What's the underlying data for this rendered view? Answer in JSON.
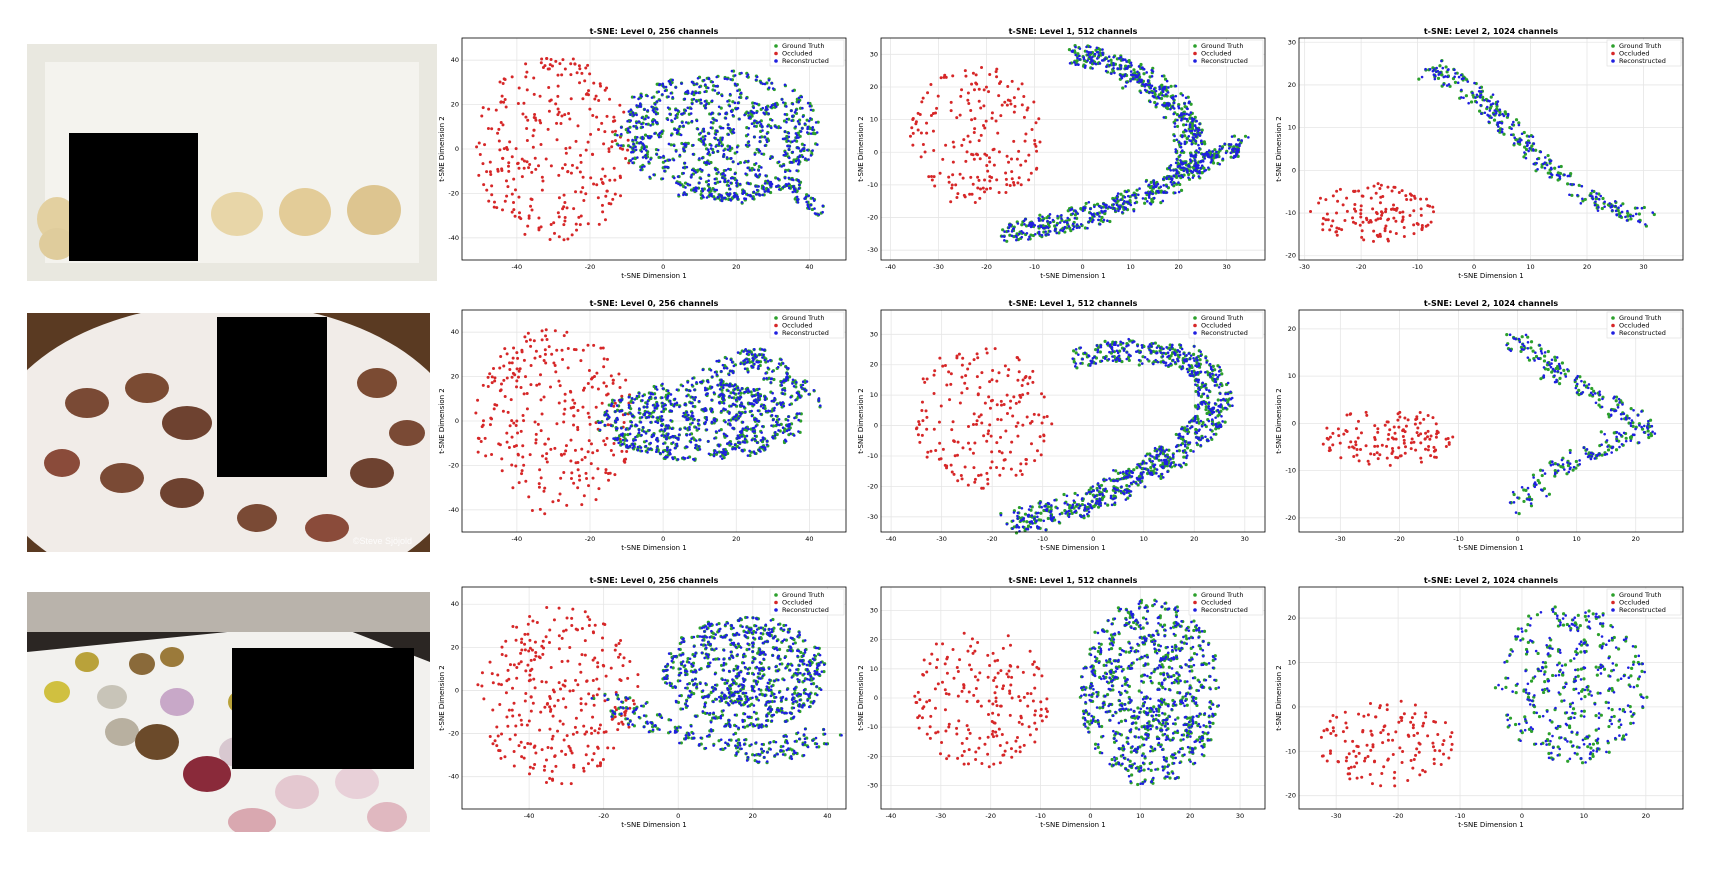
{
  "rows": [
    {
      "image": {
        "subject": "seashells on white paper",
        "occluded": true,
        "watermark": ""
      },
      "charts": [
        {
          "title": "t-SNE: Level 0, 256 channels",
          "clusters": "L0A"
        },
        {
          "title": "t-SNE: Level 1, 512 channels",
          "clusters": "L1A"
        },
        {
          "title": "t-SNE: Level 2, 1024 channels",
          "clusters": "L2A"
        }
      ]
    },
    {
      "image": {
        "subject": "chocolate-dipped strawberries on a white plate",
        "occluded": true,
        "watermark": "©Steve Sjöjold"
      },
      "charts": [
        {
          "title": "t-SNE: Level 0, 256 channels",
          "clusters": "L0B"
        },
        {
          "title": "t-SNE: Level 1, 512 channels",
          "clusters": "L1B"
        },
        {
          "title": "t-SNE: Level 2, 1024 channels",
          "clusters": "L2B"
        }
      ]
    },
    {
      "image": {
        "subject": "chocolate bonbons on a white tray",
        "occluded": true,
        "watermark": ""
      },
      "charts": [
        {
          "title": "t-SNE: Level 0, 256 channels",
          "clusters": "L0C"
        },
        {
          "title": "t-SNE: Level 1, 512 channels",
          "clusters": "L1C"
        },
        {
          "title": "t-SNE: Level 2, 1024 channels",
          "clusters": "L2C"
        }
      ]
    }
  ],
  "chart_data": [
    {
      "type": "scatter",
      "title": "t-SNE: Level 0, 256 channels",
      "xlabel": "t-SNE Dimension 1",
      "ylabel": "t-SNE Dimension 2",
      "xlim": [
        -55,
        50
      ],
      "ylim": [
        -50,
        50
      ],
      "xticks": [
        -40,
        -20,
        0,
        20,
        40
      ],
      "yticks": [
        -40,
        -20,
        0,
        20,
        40
      ],
      "grid": true,
      "legend": "top-right",
      "series": [
        {
          "name": "Ground Truth",
          "color": "#2ca02c"
        },
        {
          "name": "Occluded",
          "color": "#d62728"
        },
        {
          "name": "Reconstructed",
          "color": "#1f1fe0"
        }
      ]
    },
    {
      "type": "scatter",
      "title": "t-SNE: Level 1, 512 channels",
      "xlabel": "t-SNE Dimension 1",
      "ylabel": "t-SNE Dimension 2",
      "xlim": [
        -42,
        38
      ],
      "ylim": [
        -33,
        35
      ],
      "xticks": [
        -40,
        -30,
        -20,
        -10,
        0,
        10,
        20,
        30
      ],
      "yticks": [
        -30,
        -20,
        -10,
        0,
        10,
        20,
        30
      ],
      "grid": true,
      "legend": "top-right",
      "series": [
        {
          "name": "Ground Truth",
          "color": "#2ca02c"
        },
        {
          "name": "Occluded",
          "color": "#d62728"
        },
        {
          "name": "Reconstructed",
          "color": "#1f1fe0"
        }
      ]
    },
    {
      "type": "scatter",
      "title": "t-SNE: Level 2, 1024 channels",
      "xlabel": "t-SNE Dimension 1",
      "ylabel": "t-SNE Dimension 2",
      "xlim": [
        -31,
        37
      ],
      "ylim": [
        -21,
        31
      ],
      "xticks": [
        -30,
        -20,
        -10,
        0,
        10,
        20,
        30
      ],
      "yticks": [
        -20,
        -10,
        0,
        10,
        20,
        30
      ],
      "grid": true,
      "legend": "top-right",
      "series": [
        {
          "name": "Ground Truth",
          "color": "#2ca02c"
        },
        {
          "name": "Occluded",
          "color": "#d62728"
        },
        {
          "name": "Reconstructed",
          "color": "#1f1fe0"
        }
      ]
    },
    {
      "type": "scatter",
      "title": "t-SNE: Level 0, 256 channels",
      "xlabel": "t-SNE Dimension 1",
      "ylabel": "t-SNE Dimension 2",
      "xlim": [
        -55,
        50
      ],
      "ylim": [
        -50,
        50
      ],
      "xticks": [
        -40,
        -20,
        0,
        20,
        40
      ],
      "yticks": [
        -40,
        -20,
        0,
        20,
        40
      ],
      "grid": true,
      "legend": "top-right",
      "series": [
        {
          "name": "Ground Truth",
          "color": "#2ca02c"
        },
        {
          "name": "Occluded",
          "color": "#d62728"
        },
        {
          "name": "Reconstructed",
          "color": "#1f1fe0"
        }
      ]
    },
    {
      "type": "scatter",
      "title": "t-SNE: Level 1, 512 channels",
      "xlabel": "t-SNE Dimension 1",
      "ylabel": "t-SNE Dimension 2",
      "xlim": [
        -42,
        34
      ],
      "ylim": [
        -35,
        38
      ],
      "xticks": [
        -40,
        -30,
        -20,
        -10,
        0,
        10,
        20,
        30
      ],
      "yticks": [
        -30,
        -20,
        -10,
        0,
        10,
        20,
        30
      ],
      "grid": true,
      "legend": "top-right",
      "series": [
        {
          "name": "Ground Truth",
          "color": "#2ca02c"
        },
        {
          "name": "Occluded",
          "color": "#d62728"
        },
        {
          "name": "Reconstructed",
          "color": "#1f1fe0"
        }
      ]
    },
    {
      "type": "scatter",
      "title": "t-SNE: Level 2, 1024 channels",
      "xlabel": "t-SNE Dimension 1",
      "ylabel": "t-SNE Dimension 2",
      "xlim": [
        -37,
        28
      ],
      "ylim": [
        -23,
        24
      ],
      "xticks": [
        -30,
        -20,
        -10,
        0,
        10,
        20
      ],
      "yticks": [
        -20,
        -10,
        0,
        10,
        20
      ],
      "grid": true,
      "legend": "top-right",
      "series": [
        {
          "name": "Ground Truth",
          "color": "#2ca02c"
        },
        {
          "name": "Occluded",
          "color": "#d62728"
        },
        {
          "name": "Reconstructed",
          "color": "#1f1fe0"
        }
      ]
    },
    {
      "type": "scatter",
      "title": "t-SNE: Level 0, 256 channels",
      "xlabel": "t-SNE Dimension 1",
      "ylabel": "t-SNE Dimension 2",
      "xlim": [
        -58,
        45
      ],
      "ylim": [
        -55,
        48
      ],
      "xticks": [
        -40,
        -20,
        0,
        20,
        40
      ],
      "yticks": [
        -40,
        -20,
        0,
        20,
        40
      ],
      "grid": true,
      "legend": "top-right",
      "series": [
        {
          "name": "Ground Truth",
          "color": "#2ca02c"
        },
        {
          "name": "Occluded",
          "color": "#d62728"
        },
        {
          "name": "Reconstructed",
          "color": "#1f1fe0"
        }
      ]
    },
    {
      "type": "scatter",
      "title": "t-SNE: Level 1, 512 channels",
      "xlabel": "t-SNE Dimension 1",
      "ylabel": "t-SNE Dimension 2",
      "xlim": [
        -42,
        35
      ],
      "ylim": [
        -38,
        38
      ],
      "xticks": [
        -40,
        -30,
        -20,
        -10,
        0,
        10,
        20,
        30
      ],
      "yticks": [
        -30,
        -20,
        -10,
        0,
        10,
        20,
        30
      ],
      "grid": true,
      "legend": "top-right",
      "series": [
        {
          "name": "Ground Truth",
          "color": "#2ca02c"
        },
        {
          "name": "Occluded",
          "color": "#d62728"
        },
        {
          "name": "Reconstructed",
          "color": "#1f1fe0"
        }
      ]
    },
    {
      "type": "scatter",
      "title": "t-SNE: Level 2, 1024 channels",
      "xlabel": "t-SNE Dimension 1",
      "ylabel": "t-SNE Dimension 2",
      "xlim": [
        -36,
        26
      ],
      "ylim": [
        -23,
        27
      ],
      "xticks": [
        -30,
        -20,
        -10,
        0,
        10,
        20
      ],
      "yticks": [
        -20,
        -10,
        0,
        10,
        20
      ],
      "grid": true,
      "legend": "top-right",
      "series": [
        {
          "name": "Ground Truth",
          "color": "#2ca02c"
        },
        {
          "name": "Occluded",
          "color": "#d62728"
        },
        {
          "name": "Reconstructed",
          "color": "#1f1fe0"
        }
      ]
    }
  ]
}
